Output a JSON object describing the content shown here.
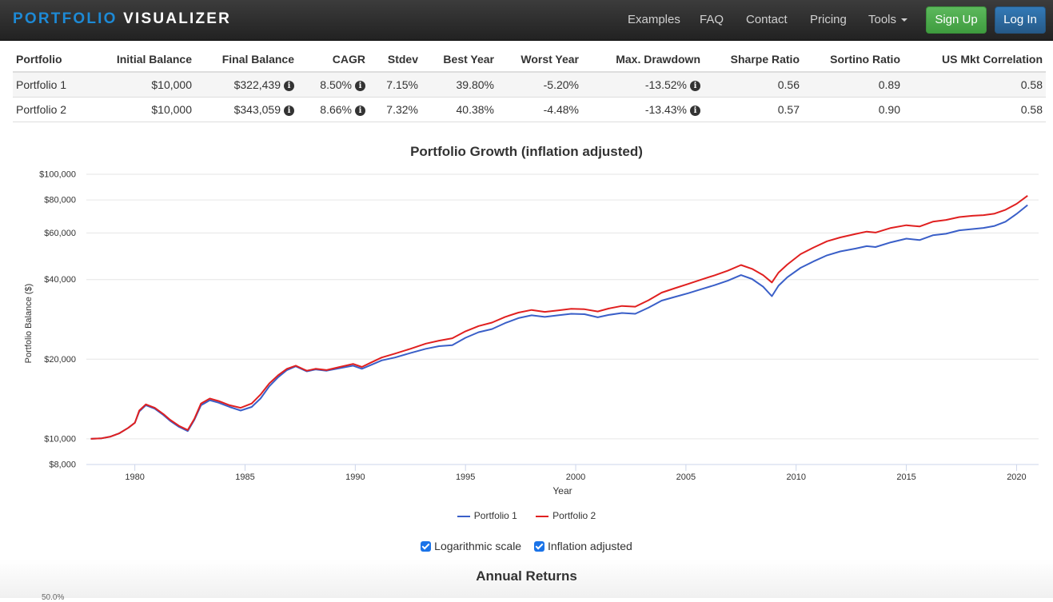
{
  "nav": {
    "brand_part1": "PORTFOLIO",
    "brand_part2": "VISUALIZER",
    "links": [
      "Examples",
      "FAQ",
      "Contact",
      "Pricing",
      "Tools"
    ],
    "signup": "Sign Up",
    "login": "Log In",
    "brand_color": "#1d8ad6"
  },
  "table": {
    "headers": [
      "Portfolio",
      "Initial Balance",
      "Final Balance",
      "CAGR",
      "Stdev",
      "Best Year",
      "Worst Year",
      "Max. Drawdown",
      "Sharpe Ratio",
      "Sortino Ratio",
      "US Mkt Correlation"
    ],
    "rows": [
      [
        "Portfolio 1",
        "$10,000",
        "$322,439",
        "8.50%",
        "7.15%",
        "39.80%",
        "-5.20%",
        "-13.52%",
        "0.56",
        "0.89",
        "0.58"
      ],
      [
        "Portfolio 2",
        "$10,000",
        "$343,059",
        "8.66%",
        "7.32%",
        "40.38%",
        "-4.48%",
        "-13.43%",
        "0.57",
        "0.90",
        "0.58"
      ]
    ]
  },
  "chart_data": {
    "type": "line",
    "title": "Portfolio Growth (inflation adjusted)",
    "xlabel": "Year",
    "ylabel": "Portfolio Balance ($)",
    "y_scale": "log",
    "ylim": [
      8000,
      100000
    ],
    "xlim": [
      1977.8,
      2021.0
    ],
    "y_ticks": [
      8000,
      10000,
      20000,
      40000,
      60000,
      80000,
      100000
    ],
    "y_tick_labels": [
      "$8,000",
      "$10,000",
      "$20,000",
      "$40,000",
      "$60,000",
      "$80,000",
      "$100,000"
    ],
    "x_ticks": [
      1980,
      1985,
      1990,
      1995,
      2000,
      2005,
      2010,
      2015,
      2020
    ],
    "grid": true,
    "legend_position": "bottom",
    "series": [
      {
        "name": "Portfolio 1",
        "color": "#3a5fc8",
        "x": [
          1978.0,
          1978.5,
          1978.9,
          1979.3,
          1979.7,
          1980.0,
          1980.2,
          1980.5,
          1980.9,
          1981.3,
          1981.6,
          1982.0,
          1982.4,
          1982.7,
          1983.0,
          1983.4,
          1983.8,
          1984.3,
          1984.8,
          1985.3,
          1985.7,
          1986.1,
          1986.5,
          1986.9,
          1987.3,
          1987.8,
          1988.2,
          1988.7,
          1989.3,
          1989.9,
          1990.3,
          1990.7,
          1991.2,
          1991.8,
          1992.5,
          1993.2,
          1993.8,
          1994.4,
          1995.0,
          1995.6,
          1996.2,
          1996.8,
          1997.4,
          1998.0,
          1998.6,
          1999.2,
          1999.8,
          2000.4,
          2001.0,
          2001.5,
          2002.1,
          2002.7,
          2003.3,
          2003.9,
          2004.5,
          2005.1,
          2005.7,
          2006.3,
          2006.9,
          2007.5,
          2008.0,
          2008.5,
          2008.9,
          2009.2,
          2009.6,
          2010.2,
          2010.8,
          2011.4,
          2012.0,
          2012.7,
          2013.2,
          2013.6,
          2014.3,
          2015.0,
          2015.6,
          2016.2,
          2016.8,
          2017.4,
          2018.0,
          2018.5,
          2019.0,
          2019.5,
          2020.0,
          2020.5
        ],
        "y": [
          10000,
          10050,
          10200,
          10500,
          11000,
          11500,
          12700,
          13400,
          13000,
          12300,
          11700,
          11100,
          10700,
          11800,
          13400,
          14000,
          13700,
          13200,
          12800,
          13200,
          14200,
          15800,
          17100,
          18200,
          18800,
          18000,
          18300,
          18100,
          18500,
          18900,
          18400,
          19000,
          19800,
          20300,
          21100,
          21900,
          22400,
          22600,
          24100,
          25300,
          26000,
          27400,
          28600,
          29300,
          28900,
          29300,
          29700,
          29600,
          28800,
          29400,
          29900,
          29700,
          31300,
          33300,
          34400,
          35500,
          36800,
          38100,
          39600,
          41600,
          40200,
          37600,
          34600,
          37900,
          40800,
          44300,
          46900,
          49400,
          51100,
          52400,
          53500,
          53100,
          55300,
          57100,
          56400,
          58800,
          59600,
          61400,
          62100,
          62700,
          63800,
          66200,
          70800,
          76500
        ]
      },
      {
        "name": "Portfolio 2",
        "color": "#e02020",
        "x": [
          1978.0,
          1978.5,
          1978.9,
          1979.3,
          1979.7,
          1980.0,
          1980.2,
          1980.5,
          1980.9,
          1981.3,
          1981.6,
          1982.0,
          1982.4,
          1982.7,
          1983.0,
          1983.4,
          1983.8,
          1984.3,
          1984.8,
          1985.3,
          1985.7,
          1986.1,
          1986.5,
          1986.9,
          1987.3,
          1987.8,
          1988.2,
          1988.7,
          1989.3,
          1989.9,
          1990.3,
          1990.7,
          1991.2,
          1991.8,
          1992.5,
          1993.2,
          1993.8,
          1994.4,
          1995.0,
          1995.6,
          1996.2,
          1996.8,
          1997.4,
          1998.0,
          1998.6,
          1999.2,
          1999.8,
          2000.4,
          2001.0,
          2001.5,
          2002.1,
          2002.7,
          2003.3,
          2003.9,
          2004.5,
          2005.1,
          2005.7,
          2006.3,
          2006.9,
          2007.5,
          2008.0,
          2008.5,
          2008.9,
          2009.2,
          2009.6,
          2010.2,
          2010.8,
          2011.4,
          2012.0,
          2012.7,
          2013.2,
          2013.6,
          2014.3,
          2015.0,
          2015.6,
          2016.2,
          2016.8,
          2017.4,
          2018.0,
          2018.5,
          2019.0,
          2019.5,
          2020.0,
          2020.5
        ],
        "y": [
          10000,
          10050,
          10200,
          10500,
          11000,
          11500,
          12800,
          13500,
          13100,
          12400,
          11800,
          11200,
          10800,
          11900,
          13600,
          14200,
          13900,
          13400,
          13100,
          13600,
          14700,
          16200,
          17400,
          18400,
          18900,
          18100,
          18400,
          18200,
          18700,
          19200,
          18700,
          19400,
          20300,
          21000,
          21900,
          22900,
          23500,
          24000,
          25500,
          26700,
          27500,
          28900,
          30000,
          30700,
          30200,
          30600,
          31000,
          30900,
          30300,
          31100,
          31800,
          31600,
          33400,
          35700,
          37100,
          38500,
          40000,
          41500,
          43200,
          45400,
          43900,
          41600,
          39000,
          42500,
          45600,
          49900,
          52900,
          55800,
          57700,
          59500,
          60700,
          60200,
          62700,
          64200,
          63500,
          66200,
          67200,
          68900,
          69700,
          70100,
          71000,
          73400,
          77300,
          83000
        ]
      }
    ]
  },
  "options": {
    "log_scale": "Logarithmic scale",
    "inflation": "Inflation adjusted",
    "accent": "#1a73e8"
  },
  "next_section": {
    "title": "Annual Returns",
    "partial_label": "50.0%"
  }
}
